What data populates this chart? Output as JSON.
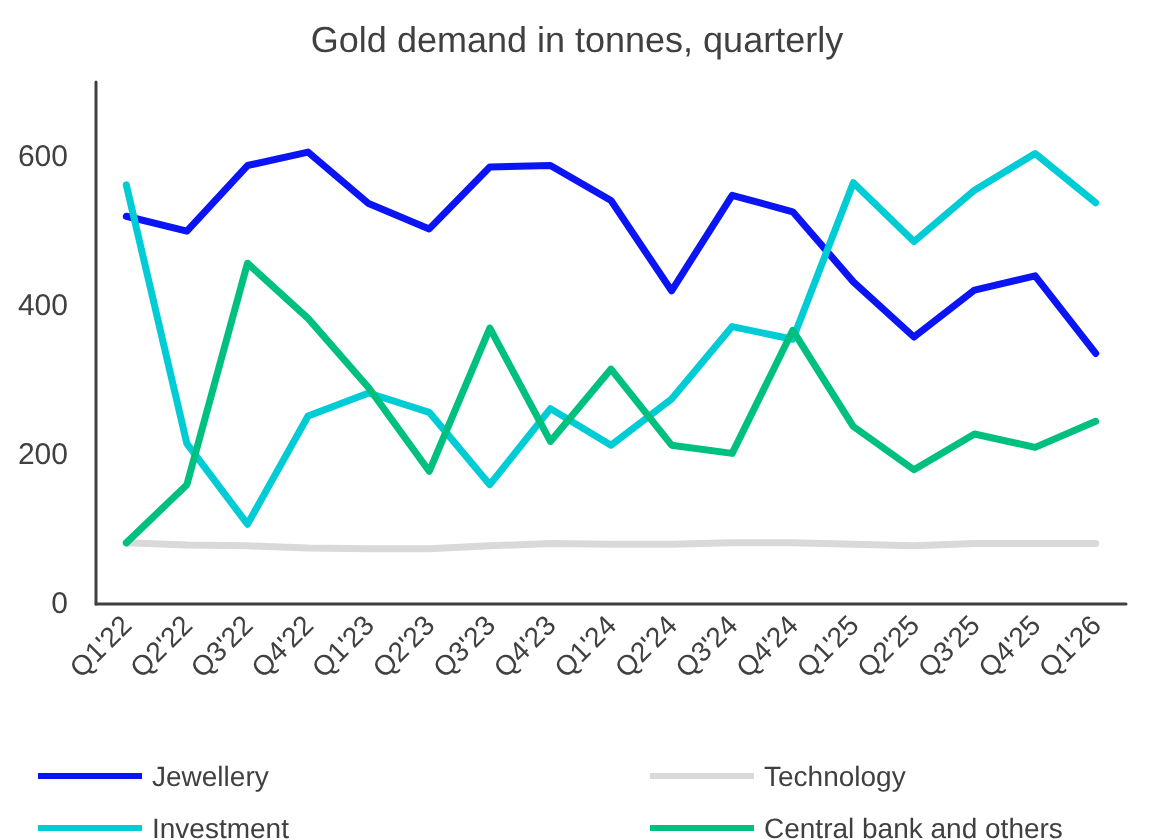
{
  "chart_data": {
    "type": "line",
    "title": "Gold demand in tonnes, quarterly",
    "categories": [
      "Q1'22",
      "Q2'22",
      "Q3'22",
      "Q4'22",
      "Q1'23",
      "Q2'23",
      "Q3'23",
      "Q4'23",
      "Q1'24",
      "Q2'24",
      "Q3'24",
      "Q4'24",
      "Q1'25",
      "Q2'25",
      "Q3'25",
      "Q4'25",
      "Q1'26"
    ],
    "series": [
      {
        "name": "Jewellery",
        "color": "#0a14f5",
        "values": [
          520,
          500,
          588,
          606,
          537,
          503,
          586,
          588,
          541,
          420,
          548,
          526,
          432,
          358,
          421,
          440,
          336
        ]
      },
      {
        "name": "Technology",
        "color": "#d9d9d9",
        "values": [
          82,
          79,
          78,
          75,
          74,
          74,
          78,
          81,
          80,
          80,
          82,
          82,
          80,
          78,
          81,
          81,
          81
        ]
      },
      {
        "name": "Investment",
        "color": "#00ccd6",
        "values": [
          562,
          215,
          107,
          252,
          283,
          257,
          160,
          262,
          213,
          275,
          372,
          355,
          565,
          486,
          555,
          604,
          538
        ]
      },
      {
        "name": "Central bank and others",
        "color": "#00c07f",
        "values": [
          82,
          160,
          457,
          383,
          290,
          178,
          370,
          218,
          315,
          213,
          202,
          367,
          238,
          180,
          228,
          210,
          245
        ]
      }
    ],
    "ylim": [
      0,
      700
    ],
    "yticks": [
      0,
      200,
      400,
      600
    ],
    "grid": false,
    "legend": "bottom",
    "marker": "none",
    "line_style": "solid"
  }
}
